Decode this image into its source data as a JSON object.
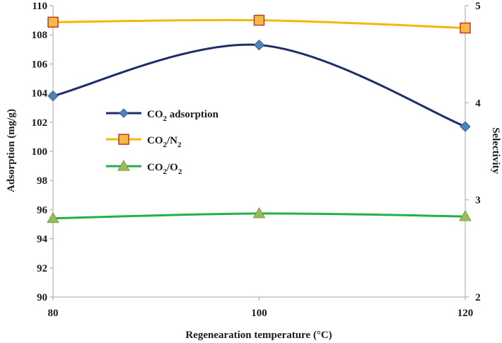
{
  "chart_data": {
    "type": "line",
    "xlabel": "Regenearation temperature (°C)",
    "ylabel": "Adsorption (mg/g)",
    "y2label": "Selectivity",
    "categories": [
      "80",
      "100",
      "120"
    ],
    "ylim": [
      90,
      110
    ],
    "yticks": [
      "90",
      "92",
      "94",
      "96",
      "98",
      "100",
      "102",
      "104",
      "106",
      "108",
      "110"
    ],
    "y2lim": [
      2,
      5
    ],
    "y2ticks": [
      "2",
      "3",
      "4",
      "5"
    ],
    "grid": false,
    "legend_position": "center-left",
    "series": [
      {
        "name": "CO2 adsorption",
        "axis": "left",
        "values": [
          103.8,
          107.3,
          101.7
        ],
        "color": "#1f2d6b",
        "marker": "diamond",
        "marker_fill": "#4f81bd"
      },
      {
        "name": "CO2/N2",
        "axis": "right",
        "values": [
          4.83,
          4.85,
          4.77
        ],
        "color": "#f5b800",
        "marker": "square",
        "marker_fill": "#f7b84a",
        "marker_stroke": "#c0392b"
      },
      {
        "name": "CO2/O2",
        "axis": "right",
        "values": [
          2.81,
          2.86,
          2.83
        ],
        "color": "#22b04b",
        "marker": "triangle",
        "marker_fill": "#9bbb59"
      }
    ],
    "legend": {
      "item1": {
        "main": "CO",
        "sub": "2",
        "rest": " adsorption"
      },
      "item2": {
        "main": "CO",
        "sub": "2",
        "mid": "/N",
        "sub2": "2"
      },
      "item3": {
        "main": "CO",
        "sub": "2",
        "mid": "/O",
        "sub2": "2"
      }
    }
  }
}
